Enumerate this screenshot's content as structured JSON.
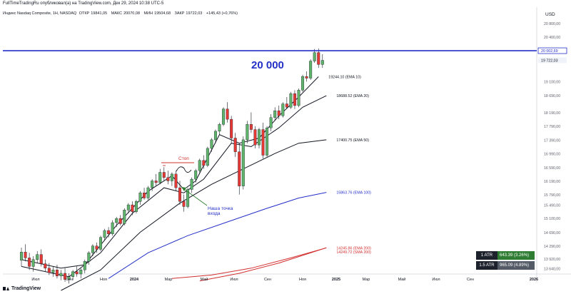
{
  "header": {
    "publisher": "FullTimeTradingRu опубликовал(а) на TradingView.com, Дек 29, 2024 10:38 UTC-5",
    "symbol": "Индекс Nasdaq Composite, 1Н, NASDAQ",
    "ohlc": [
      {
        "label": "ОТКР",
        "value": "19841,05"
      },
      {
        "label": "МАКС",
        "value": "20070,08"
      },
      {
        "label": "МИН",
        "value": "19504,68"
      },
      {
        "label": "ЗАКР",
        "value": "19722,03"
      }
    ],
    "change": "+145,43 (+0,76%)"
  },
  "footer": {
    "brand": "TradingView"
  },
  "atr": [
    {
      "label": "1 ATR",
      "value": "643.39 (3.26%)",
      "color": "#2e7d32"
    },
    {
      "label": "1.5 ATR",
      "value": "965.09 (4.89%)",
      "color": "#555b66"
    }
  ],
  "chart_data": {
    "type": "candlestick",
    "currency": "USD",
    "x_tick_labels": [
      "Июл",
      "Сен",
      "Ноя",
      "2024",
      "Мар",
      "Май",
      "Июл",
      "Сен",
      "Ноя",
      "2025",
      "Мар",
      "Май",
      "Июл",
      "Сен",
      "2026"
    ],
    "y_tick_labels": [
      "20 800,00",
      "20 400,00",
      "20 002,69",
      "19 722,03",
      "19 100,00",
      "18 690,00",
      "18 190,00",
      "17 790,00",
      "17 390,00",
      "16 990,00",
      "16 590,00",
      "16 190,00",
      "15 790,00",
      "15 490,00",
      "15 100,00",
      "14 690,00",
      "14 290,00",
      "13 920,00",
      "13 640,00"
    ],
    "candles": [
      {
        "o": 13880,
        "h": 14250,
        "l": 13700,
        "c": 14120
      },
      {
        "o": 14120,
        "h": 14350,
        "l": 13850,
        "c": 13950
      },
      {
        "o": 13950,
        "h": 14100,
        "l": 13600,
        "c": 13700
      },
      {
        "o": 13700,
        "h": 14000,
        "l": 13550,
        "c": 13900
      },
      {
        "o": 13900,
        "h": 14150,
        "l": 13800,
        "c": 14050
      },
      {
        "o": 14050,
        "h": 14200,
        "l": 13700,
        "c": 13780
      },
      {
        "o": 13780,
        "h": 13900,
        "l": 13550,
        "c": 13650
      },
      {
        "o": 13650,
        "h": 13800,
        "l": 13450,
        "c": 13520
      },
      {
        "o": 13520,
        "h": 13700,
        "l": 13400,
        "c": 13600
      },
      {
        "o": 13600,
        "h": 13750,
        "l": 13350,
        "c": 13420
      },
      {
        "o": 13420,
        "h": 13600,
        "l": 13300,
        "c": 13500
      },
      {
        "o": 13500,
        "h": 13650,
        "l": 13250,
        "c": 13320
      },
      {
        "o": 13320,
        "h": 13500,
        "l": 13200,
        "c": 13400
      },
      {
        "o": 13400,
        "h": 13600,
        "l": 13300,
        "c": 13550
      },
      {
        "o": 13550,
        "h": 13700,
        "l": 13400,
        "c": 13480
      },
      {
        "o": 13480,
        "h": 13650,
        "l": 13350,
        "c": 13600
      },
      {
        "o": 13600,
        "h": 13900,
        "l": 13500,
        "c": 13850
      },
      {
        "o": 13850,
        "h": 14150,
        "l": 13750,
        "c": 14100
      },
      {
        "o": 14100,
        "h": 14350,
        "l": 14000,
        "c": 14300
      },
      {
        "o": 14300,
        "h": 14400,
        "l": 14100,
        "c": 14200
      },
      {
        "o": 14200,
        "h": 14600,
        "l": 14150,
        "c": 14550
      },
      {
        "o": 14550,
        "h": 14800,
        "l": 14450,
        "c": 14750
      },
      {
        "o": 14750,
        "h": 14850,
        "l": 14550,
        "c": 14650
      },
      {
        "o": 14650,
        "h": 15050,
        "l": 14600,
        "c": 14980
      },
      {
        "o": 14980,
        "h": 15150,
        "l": 14850,
        "c": 15100
      },
      {
        "o": 15100,
        "h": 15200,
        "l": 14900,
        "c": 14950
      },
      {
        "o": 14950,
        "h": 15400,
        "l": 14900,
        "c": 15350
      },
      {
        "o": 15350,
        "h": 15550,
        "l": 15250,
        "c": 15500
      },
      {
        "o": 15500,
        "h": 15600,
        "l": 15200,
        "c": 15300
      },
      {
        "o": 15300,
        "h": 15650,
        "l": 15250,
        "c": 15600
      },
      {
        "o": 15600,
        "h": 15900,
        "l": 15500,
        "c": 15850
      },
      {
        "o": 15850,
        "h": 16000,
        "l": 15650,
        "c": 15700
      },
      {
        "o": 15700,
        "h": 16050,
        "l": 15650,
        "c": 16000
      },
      {
        "o": 16000,
        "h": 16250,
        "l": 15900,
        "c": 16200
      },
      {
        "o": 16200,
        "h": 16400,
        "l": 16050,
        "c": 16150
      },
      {
        "o": 16150,
        "h": 16550,
        "l": 16100,
        "c": 16450
      },
      {
        "o": 16450,
        "h": 16600,
        "l": 16200,
        "c": 16300
      },
      {
        "o": 16300,
        "h": 16500,
        "l": 16100,
        "c": 16200
      },
      {
        "o": 16200,
        "h": 16450,
        "l": 16050,
        "c": 16400
      },
      {
        "o": 16400,
        "h": 16500,
        "l": 15900,
        "c": 16000
      },
      {
        "o": 16000,
        "h": 16200,
        "l": 15500,
        "c": 15600
      },
      {
        "o": 15600,
        "h": 15800,
        "l": 15300,
        "c": 15450
      },
      {
        "o": 15450,
        "h": 16000,
        "l": 15400,
        "c": 15950
      },
      {
        "o": 15950,
        "h": 16300,
        "l": 15850,
        "c": 16250
      },
      {
        "o": 16250,
        "h": 16550,
        "l": 16150,
        "c": 16500
      },
      {
        "o": 16500,
        "h": 16850,
        "l": 16400,
        "c": 16800
      },
      {
        "o": 16800,
        "h": 16950,
        "l": 16550,
        "c": 16650
      },
      {
        "o": 16650,
        "h": 17200,
        "l": 16600,
        "c": 17150
      },
      {
        "o": 17150,
        "h": 17450,
        "l": 17050,
        "c": 17400
      },
      {
        "o": 17400,
        "h": 17700,
        "l": 17300,
        "c": 17650
      },
      {
        "o": 17650,
        "h": 17900,
        "l": 17550,
        "c": 17850
      },
      {
        "o": 17850,
        "h": 18350,
        "l": 17800,
        "c": 18300
      },
      {
        "o": 18300,
        "h": 18500,
        "l": 17900,
        "c": 18000
      },
      {
        "o": 18000,
        "h": 18100,
        "l": 17300,
        "c": 17450
      },
      {
        "o": 17450,
        "h": 17600,
        "l": 16900,
        "c": 17050
      },
      {
        "o": 17050,
        "h": 17300,
        "l": 15800,
        "c": 16050
      },
      {
        "o": 16050,
        "h": 17500,
        "l": 15950,
        "c": 17400
      },
      {
        "o": 17400,
        "h": 17950,
        "l": 17300,
        "c": 17850
      },
      {
        "o": 17850,
        "h": 18200,
        "l": 17600,
        "c": 17700
      },
      {
        "o": 17700,
        "h": 17800,
        "l": 17150,
        "c": 17250
      },
      {
        "o": 17250,
        "h": 17750,
        "l": 17150,
        "c": 17700
      },
      {
        "o": 17700,
        "h": 17900,
        "l": 16850,
        "c": 16950
      },
      {
        "o": 16950,
        "h": 17800,
        "l": 16900,
        "c": 17750
      },
      {
        "o": 17750,
        "h": 18150,
        "l": 17650,
        "c": 18050
      },
      {
        "o": 18050,
        "h": 18350,
        "l": 17950,
        "c": 18250
      },
      {
        "o": 18250,
        "h": 18400,
        "l": 18000,
        "c": 18100
      },
      {
        "o": 18100,
        "h": 18500,
        "l": 18050,
        "c": 18450
      },
      {
        "o": 18450,
        "h": 18650,
        "l": 18300,
        "c": 18350
      },
      {
        "o": 18350,
        "h": 18800,
        "l": 18300,
        "c": 18750
      },
      {
        "o": 18750,
        "h": 18850,
        "l": 18300,
        "c": 18400
      },
      {
        "o": 18400,
        "h": 18900,
        "l": 18350,
        "c": 18850
      },
      {
        "o": 18850,
        "h": 19300,
        "l": 18800,
        "c": 19250
      },
      {
        "o": 19250,
        "h": 19400,
        "l": 19100,
        "c": 19200
      },
      {
        "o": 19200,
        "h": 19750,
        "l": 19150,
        "c": 19700
      },
      {
        "o": 19700,
        "h": 20050,
        "l": 19650,
        "c": 19950
      },
      {
        "o": 19950,
        "h": 20070,
        "l": 19500,
        "c": 19600
      },
      {
        "o": 19600,
        "h": 19900,
        "l": 19500,
        "c": 19722
      }
    ],
    "moving_averages": [
      {
        "label": "19244.10 (EMA 10)",
        "color": "#131722",
        "points": [
          [
            0,
            13900
          ],
          [
            10,
            13650
          ],
          [
            16,
            13750
          ],
          [
            24,
            14900
          ],
          [
            32,
            15900
          ],
          [
            38,
            16350
          ],
          [
            41,
            15950
          ],
          [
            44,
            16200
          ],
          [
            50,
            17550
          ],
          [
            55,
            17300
          ],
          [
            60,
            17450
          ],
          [
            65,
            18100
          ],
          [
            70,
            18650
          ],
          [
            75,
            19244
          ]
        ]
      },
      {
        "label": "18688.52 (EMA 20)",
        "color": "#131722",
        "points": [
          [
            0,
            13700
          ],
          [
            12,
            13400
          ],
          [
            20,
            14100
          ],
          [
            28,
            15250
          ],
          [
            36,
            16000
          ],
          [
            41,
            15850
          ],
          [
            46,
            16250
          ],
          [
            53,
            17300
          ],
          [
            58,
            17200
          ],
          [
            65,
            17750
          ],
          [
            71,
            18350
          ],
          [
            77,
            18688
          ]
        ]
      },
      {
        "label": "17400.75 (EMA 50)",
        "color": "#131722",
        "points": [
          [
            10,
            13000
          ],
          [
            20,
            13600
          ],
          [
            30,
            14700
          ],
          [
            40,
            15550
          ],
          [
            48,
            16100
          ],
          [
            56,
            16550
          ],
          [
            64,
            17000
          ],
          [
            70,
            17300
          ],
          [
            77,
            17400
          ]
        ]
      },
      {
        "label": "15863.76 (EMA 100)",
        "color": "#2430c8",
        "points": [
          [
            22,
            13350
          ],
          [
            32,
            14100
          ],
          [
            42,
            14600
          ],
          [
            52,
            15000
          ],
          [
            62,
            15400
          ],
          [
            70,
            15700
          ],
          [
            77,
            15863
          ]
        ]
      },
      {
        "label": "14245.86 (EMA 200)",
        "color": "#d32f2f",
        "points": [
          [
            38,
            13350
          ],
          [
            48,
            13450
          ],
          [
            58,
            13650
          ],
          [
            68,
            13950
          ],
          [
            77,
            14245
          ]
        ]
      },
      {
        "label": "14249.72 (SMA 200)",
        "color": "#d32f2f",
        "points": [
          [
            45,
            13280
          ],
          [
            55,
            13500
          ],
          [
            65,
            13800
          ],
          [
            77,
            14249
          ]
        ]
      }
    ],
    "horizontal_levels": [
      {
        "value": 20002.69,
        "label": "20 000",
        "color": "#2430c8"
      }
    ],
    "annotations": [
      {
        "text": "Стоп",
        "color": "#d32f2f"
      },
      {
        "text": "Наша точка",
        "color": "#2430c8"
      },
      {
        "text": "входа",
        "color": "#2430c8"
      }
    ],
    "last_price": "19 722,03",
    "level_price_label": "20 002,69"
  }
}
